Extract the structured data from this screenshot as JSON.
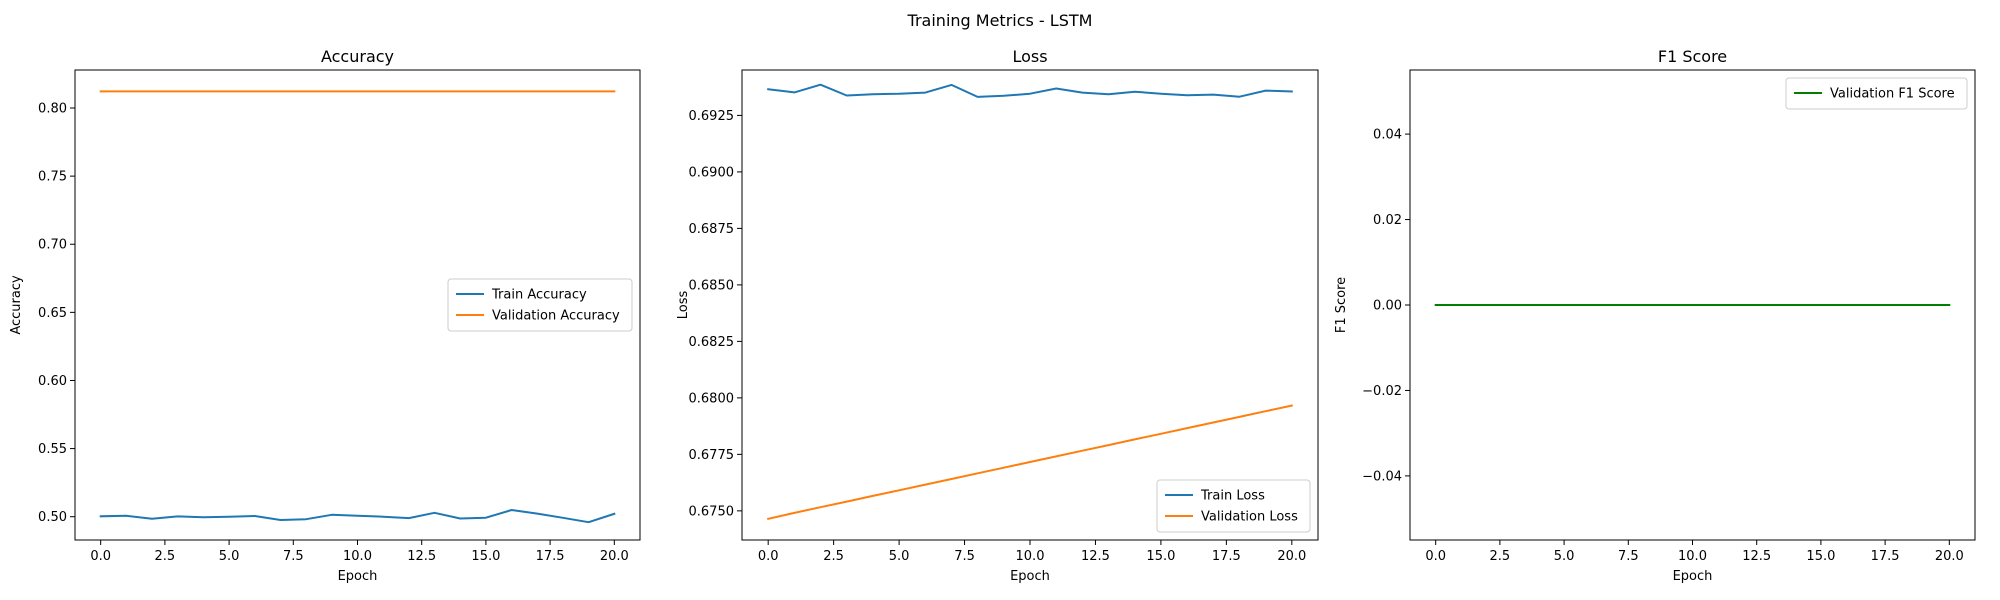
{
  "figure": {
    "suptitle": "Training Metrics - LSTM"
  },
  "colors": {
    "blue": "#1f77b4",
    "orange": "#ff7f0e",
    "green": "#008000"
  },
  "chart_data": [
    {
      "type": "line",
      "title": "Accuracy",
      "xlabel": "Epoch",
      "ylabel": "Accuracy",
      "xlim": [
        -1.0,
        21.0
      ],
      "ylim": [
        0.4829,
        0.8279
      ],
      "xticks": [
        0.0,
        2.5,
        5.0,
        7.5,
        10.0,
        12.5,
        15.0,
        17.5,
        20.0
      ],
      "xtick_labels": [
        "0.0",
        "2.5",
        "5.0",
        "7.5",
        "10.0",
        "12.5",
        "15.0",
        "17.5",
        "20.0"
      ],
      "yticks": [
        0.5,
        0.55,
        0.6,
        0.65,
        0.7,
        0.75,
        0.8
      ],
      "ytick_labels": [
        "0.50",
        "0.55",
        "0.60",
        "0.65",
        "0.70",
        "0.75",
        "0.80"
      ],
      "legend": "center-right",
      "grid": false,
      "x": [
        0,
        1,
        2,
        3,
        4,
        5,
        6,
        7,
        8,
        9,
        10,
        11,
        12,
        13,
        14,
        15,
        16,
        17,
        18,
        19,
        20
      ],
      "series": [
        {
          "name": "Train Accuracy",
          "color": "#1f77b4",
          "values": [
            0.5003,
            0.5007,
            0.4985,
            0.5002,
            0.4996,
            0.5,
            0.5005,
            0.4976,
            0.4982,
            0.5014,
            0.5007,
            0.5,
            0.499,
            0.5029,
            0.4987,
            0.4993,
            0.5049,
            0.5023,
            0.4992,
            0.496,
            0.5021
          ]
        },
        {
          "name": "Validation Accuracy",
          "color": "#ff7f0e",
          "values": [
            0.8122,
            0.8122,
            0.8122,
            0.8122,
            0.8122,
            0.8122,
            0.8122,
            0.8122,
            0.8122,
            0.8122,
            0.8122,
            0.8122,
            0.8122,
            0.8122,
            0.8122,
            0.8122,
            0.8122,
            0.8122,
            0.8122,
            0.8122,
            0.8122
          ]
        }
      ]
    },
    {
      "type": "line",
      "title": "Loss",
      "xlabel": "Epoch",
      "ylabel": "Loss",
      "xlim": [
        -1.0,
        21.0
      ],
      "ylim": [
        0.67371,
        0.69451
      ],
      "xticks": [
        0.0,
        2.5,
        5.0,
        7.5,
        10.0,
        12.5,
        15.0,
        17.5,
        20.0
      ],
      "xtick_labels": [
        "0.0",
        "2.5",
        "5.0",
        "7.5",
        "10.0",
        "12.5",
        "15.0",
        "17.5",
        "20.0"
      ],
      "yticks": [
        0.675,
        0.6775,
        0.68,
        0.6825,
        0.685,
        0.6875,
        0.69,
        0.6925
      ],
      "ytick_labels": [
        "0.6750",
        "0.6775",
        "0.6800",
        "0.6825",
        "0.6850",
        "0.6875",
        "0.6900",
        "0.6925"
      ],
      "legend": "lower-right",
      "grid": false,
      "x": [
        0,
        1,
        2,
        3,
        4,
        5,
        6,
        7,
        8,
        9,
        10,
        11,
        12,
        13,
        14,
        15,
        16,
        17,
        18,
        19,
        20
      ],
      "series": [
        {
          "name": "Train Loss",
          "color": "#1f77b4",
          "values": [
            0.69366,
            0.69352,
            0.69386,
            0.69338,
            0.69344,
            0.69346,
            0.69351,
            0.69385,
            0.69332,
            0.69337,
            0.69346,
            0.69369,
            0.69351,
            0.69344,
            0.69355,
            0.69346,
            0.69339,
            0.69342,
            0.69333,
            0.6936,
            0.69356
          ]
        },
        {
          "name": "Validation Loss",
          "color": "#ff7f0e",
          "values": [
            0.67465,
            0.67491,
            0.67516,
            0.67541,
            0.67566,
            0.67591,
            0.67616,
            0.67641,
            0.67666,
            0.67691,
            0.67716,
            0.67741,
            0.67766,
            0.67791,
            0.67816,
            0.67841,
            0.67866,
            0.67891,
            0.67916,
            0.67941,
            0.67966
          ]
        }
      ]
    },
    {
      "type": "line",
      "title": "F1 Score",
      "xlabel": "Epoch",
      "ylabel": "F1 Score",
      "xlim": [
        -1.0,
        21.0
      ],
      "ylim": [
        -0.055,
        0.055
      ],
      "xticks": [
        0.0,
        2.5,
        5.0,
        7.5,
        10.0,
        12.5,
        15.0,
        17.5,
        20.0
      ],
      "xtick_labels": [
        "0.0",
        "2.5",
        "5.0",
        "7.5",
        "10.0",
        "12.5",
        "15.0",
        "17.5",
        "20.0"
      ],
      "yticks": [
        -0.04,
        -0.02,
        0.0,
        0.02,
        0.04
      ],
      "ytick_labels": [
        "−0.04",
        "−0.02",
        "0.00",
        "0.02",
        "0.04"
      ],
      "legend": "upper-right",
      "grid": false,
      "x": [
        0,
        1,
        2,
        3,
        4,
        5,
        6,
        7,
        8,
        9,
        10,
        11,
        12,
        13,
        14,
        15,
        16,
        17,
        18,
        19,
        20
      ],
      "series": [
        {
          "name": "Validation F1 Score",
          "color": "#008000",
          "values": [
            0,
            0,
            0,
            0,
            0,
            0,
            0,
            0,
            0,
            0,
            0,
            0,
            0,
            0,
            0,
            0,
            0,
            0,
            0,
            0,
            0
          ]
        }
      ]
    }
  ]
}
